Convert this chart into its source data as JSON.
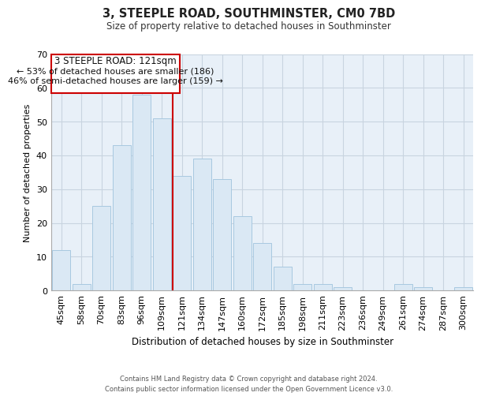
{
  "title": "3, STEEPLE ROAD, SOUTHMINSTER, CM0 7BD",
  "subtitle": "Size of property relative to detached houses in Southminster",
  "xlabel": "Distribution of detached houses by size in Southminster",
  "ylabel": "Number of detached properties",
  "categories": [
    "45sqm",
    "58sqm",
    "70sqm",
    "83sqm",
    "96sqm",
    "109sqm",
    "121sqm",
    "134sqm",
    "147sqm",
    "160sqm",
    "172sqm",
    "185sqm",
    "198sqm",
    "211sqm",
    "223sqm",
    "236sqm",
    "249sqm",
    "261sqm",
    "274sqm",
    "287sqm",
    "300sqm"
  ],
  "values": [
    12,
    2,
    25,
    43,
    58,
    51,
    34,
    39,
    33,
    22,
    14,
    7,
    2,
    2,
    1,
    0,
    0,
    2,
    1,
    0,
    1
  ],
  "bar_color": "#dae8f4",
  "bar_edge_color": "#a8c8e0",
  "highlight_line_color": "#cc0000",
  "annotation_box_color": "#ffffff",
  "annotation_box_edge": "#cc0000",
  "annotation_title": "3 STEEPLE ROAD: 121sqm",
  "annotation_line1": "← 53% of detached houses are smaller (186)",
  "annotation_line2": "46% of semi-detached houses are larger (159) →",
  "ylim": [
    0,
    70
  ],
  "yticks": [
    0,
    10,
    20,
    30,
    40,
    50,
    60,
    70
  ],
  "footer_line1": "Contains HM Land Registry data © Crown copyright and database right 2024.",
  "footer_line2": "Contains public sector information licensed under the Open Government Licence v3.0.",
  "bg_color": "#ffffff",
  "plot_bg_color": "#e8f0f8",
  "grid_color": "#c8d4e0"
}
